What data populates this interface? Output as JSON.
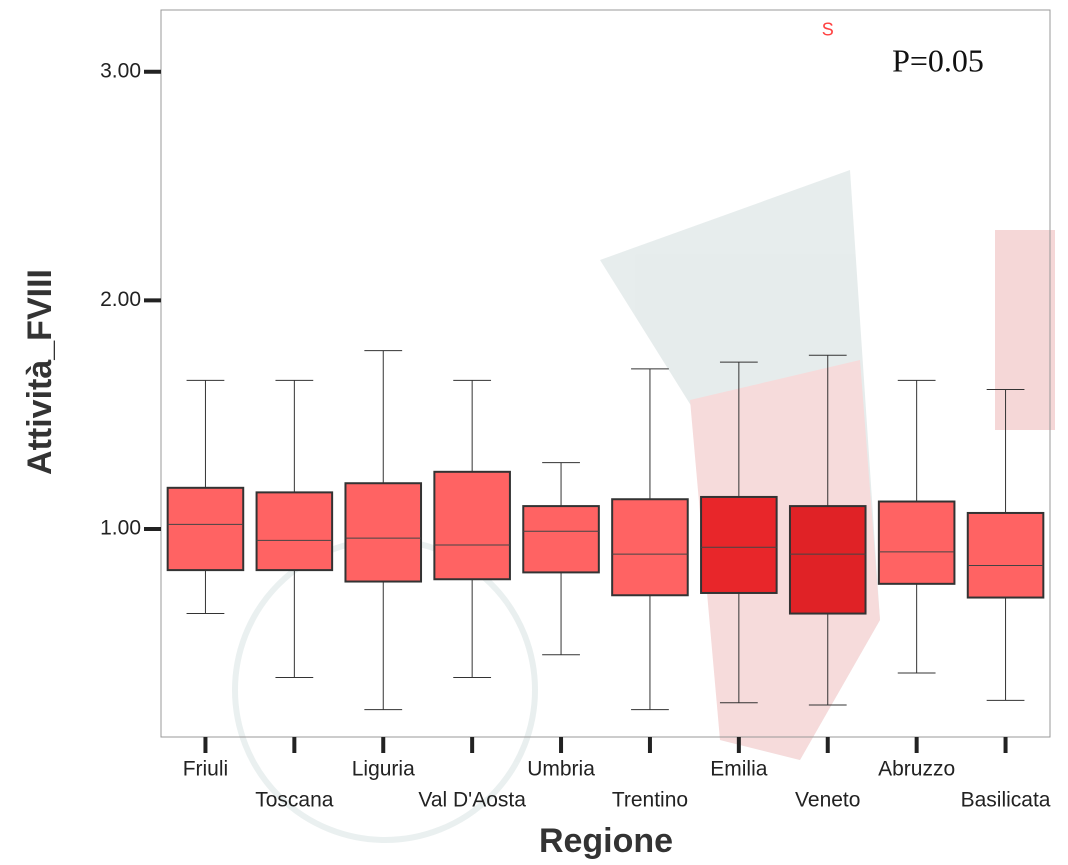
{
  "chart_data": {
    "type": "box",
    "x_label": "Regione",
    "y_label": "Attività_FVIII",
    "annotation": "P=0.05",
    "outlier": {
      "label": "S",
      "category": "Veneto",
      "value": 3.18
    },
    "categories": [
      "Friuli",
      "Toscana",
      "Liguria",
      "Val D'Aosta",
      "Umbria",
      "Trentino",
      "Emilia",
      "Veneto",
      "Abruzzo",
      "Basilicata"
    ],
    "stats": [
      {
        "low": 0.63,
        "q1": 0.82,
        "median": 1.02,
        "q3": 1.18,
        "high": 1.65
      },
      {
        "low": 0.35,
        "q1": 0.82,
        "median": 0.95,
        "q3": 1.16,
        "high": 1.65
      },
      {
        "low": 0.21,
        "q1": 0.77,
        "median": 0.96,
        "q3": 1.2,
        "high": 1.78
      },
      {
        "low": 0.35,
        "q1": 0.78,
        "median": 0.93,
        "q3": 1.25,
        "high": 1.65
      },
      {
        "low": 0.45,
        "q1": 0.81,
        "median": 0.99,
        "q3": 1.1,
        "high": 1.29
      },
      {
        "low": 0.21,
        "q1": 0.71,
        "median": 0.89,
        "q3": 1.13,
        "high": 1.7
      },
      {
        "low": 0.24,
        "q1": 0.72,
        "median": 0.92,
        "q3": 1.14,
        "high": 1.73
      },
      {
        "low": 0.23,
        "q1": 0.63,
        "median": 0.89,
        "q3": 1.1,
        "high": 1.76
      },
      {
        "low": 0.37,
        "q1": 0.76,
        "median": 0.9,
        "q3": 1.12,
        "high": 1.65
      },
      {
        "low": 0.25,
        "q1": 0.7,
        "median": 0.84,
        "q3": 1.07,
        "high": 1.61
      }
    ],
    "colors": [
      "#ff6363",
      "#ff6363",
      "#ff6363",
      "#ff6363",
      "#ff6363",
      "#ff6363",
      "#e8262a",
      "#e02226",
      "#ff6363",
      "#ff6363"
    ],
    "ylim": [
      0.09,
      3.27
    ],
    "yticks": [
      {
        "value": 1,
        "label": "1.00"
      },
      {
        "value": 2,
        "label": "2.00"
      },
      {
        "value": 3,
        "label": "3.00"
      }
    ]
  }
}
